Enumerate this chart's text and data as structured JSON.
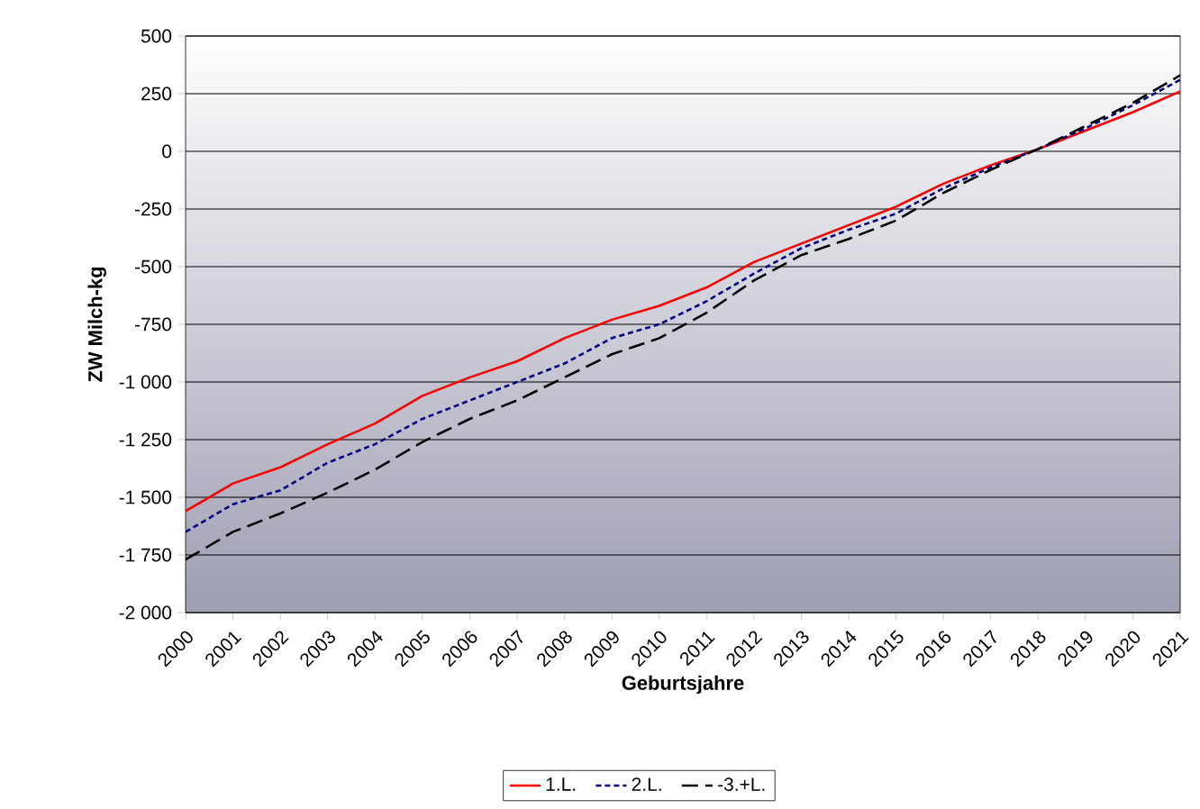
{
  "chart_data": {
    "type": "line",
    "xlabel": "Geburtsjahre",
    "ylabel": "ZW Milch-kg",
    "x": [
      2000,
      2001,
      2002,
      2003,
      2004,
      2005,
      2006,
      2007,
      2008,
      2009,
      2010,
      2011,
      2012,
      2013,
      2014,
      2015,
      2016,
      2017,
      2018,
      2019,
      2020,
      2021
    ],
    "xlim": [
      2000,
      2021
    ],
    "xticks": [
      2000,
      2001,
      2002,
      2003,
      2004,
      2005,
      2006,
      2007,
      2008,
      2009,
      2010,
      2011,
      2012,
      2013,
      2014,
      2015,
      2016,
      2017,
      2018,
      2019,
      2020,
      2021
    ],
    "ylim": [
      -2000,
      500
    ],
    "yticks": [
      {
        "value": -2000,
        "label": "-2 000"
      },
      {
        "value": -1750,
        "label": "-1 750"
      },
      {
        "value": -1500,
        "label": "-1 500"
      },
      {
        "value": -1250,
        "label": "-1 250"
      },
      {
        "value": -1000,
        "label": "-1 000"
      },
      -750,
      -500,
      -250,
      0,
      250,
      500
    ],
    "grid": "y",
    "legend": "bottom",
    "marker": "none",
    "series": [
      {
        "name": "1.L.",
        "color": "#ff0000",
        "line_style": "solid",
        "values": [
          -1560,
          -1440,
          -1370,
          -1270,
          -1180,
          -1060,
          -980,
          -910,
          -810,
          -730,
          -670,
          -590,
          -480,
          -400,
          -320,
          -240,
          -140,
          -60,
          10,
          90,
          170,
          260
        ]
      },
      {
        "name": "2.L.",
        "color": "#000080",
        "line_style": "dotted",
        "values": [
          -1650,
          -1530,
          -1470,
          -1350,
          -1270,
          -1160,
          -1080,
          -1000,
          -920,
          -810,
          -750,
          -650,
          -530,
          -420,
          -340,
          -270,
          -160,
          -70,
          10,
          100,
          200,
          310
        ]
      },
      {
        "name": "-3.+L.",
        "color": "#000000",
        "line_style": "dashed",
        "values": [
          -1770,
          -1650,
          -1570,
          -1480,
          -1380,
          -1260,
          -1160,
          -1080,
          -980,
          -880,
          -810,
          -700,
          -560,
          -450,
          -380,
          -300,
          -180,
          -80,
          10,
          110,
          210,
          330
        ]
      }
    ]
  }
}
